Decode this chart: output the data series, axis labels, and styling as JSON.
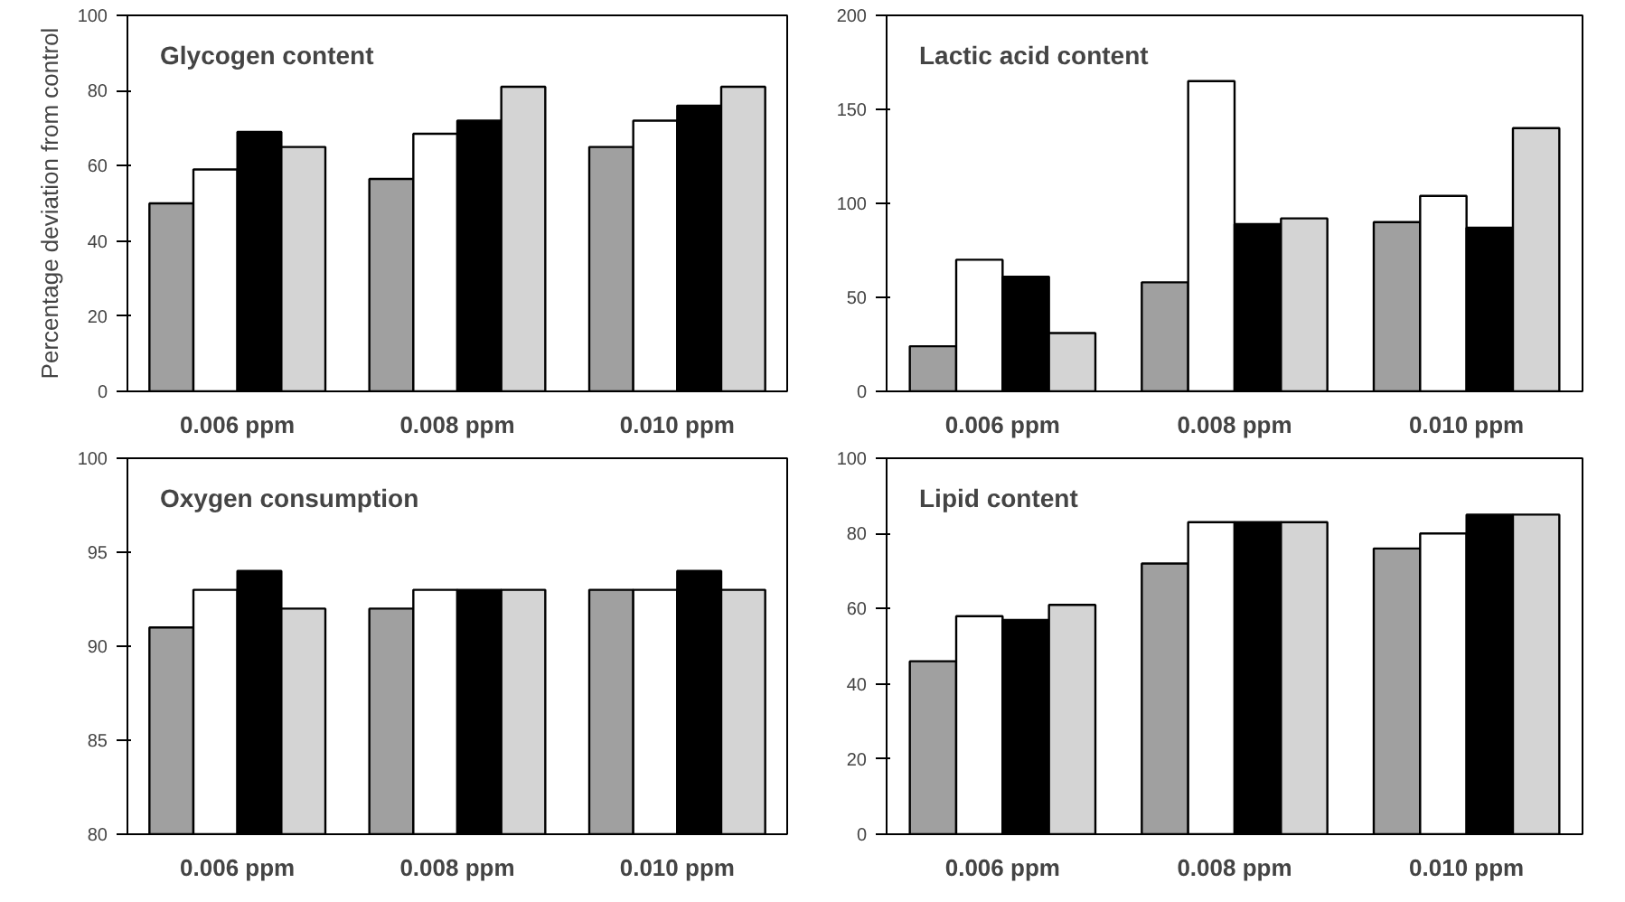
{
  "chart_data": [
    {
      "type": "bar",
      "title": "Glycogen content",
      "ylabel": "Percentage deviation from control",
      "categories": [
        "0.006 ppm",
        "0.008 ppm",
        "0.010 ppm"
      ],
      "ylim": [
        0,
        100
      ],
      "yticks": [
        0,
        20,
        40,
        60,
        80,
        100
      ],
      "grid": false,
      "series": [
        {
          "color": "#a0a0a0",
          "values": [
            50,
            56.5,
            65
          ]
        },
        {
          "color": "#ffffff",
          "values": [
            59,
            68.5,
            72
          ]
        },
        {
          "color": "#000000",
          "values": [
            69,
            72,
            76
          ]
        },
        {
          "color": "#d4d4d4",
          "values": [
            65,
            81,
            81
          ]
        }
      ]
    },
    {
      "type": "bar",
      "title": "Lactic acid content",
      "categories": [
        "0.006 ppm",
        "0.008 ppm",
        "0.010 ppm"
      ],
      "ylim": [
        0,
        200
      ],
      "yticks": [
        0,
        50,
        100,
        150,
        200
      ],
      "grid": false,
      "series": [
        {
          "color": "#a0a0a0",
          "values": [
            24,
            58,
            90
          ]
        },
        {
          "color": "#ffffff",
          "values": [
            70,
            165,
            104
          ]
        },
        {
          "color": "#000000",
          "values": [
            61,
            89,
            87
          ]
        },
        {
          "color": "#d4d4d4",
          "values": [
            31,
            92,
            140
          ]
        }
      ]
    },
    {
      "type": "bar",
      "title": "Oxygen consumption",
      "categories": [
        "0.006 ppm",
        "0.008 ppm",
        "0.010 ppm"
      ],
      "ylim": [
        80,
        100
      ],
      "yticks": [
        80,
        85,
        90,
        95,
        100
      ],
      "grid": false,
      "series": [
        {
          "color": "#a0a0a0",
          "values": [
            91,
            92,
            93
          ]
        },
        {
          "color": "#ffffff",
          "values": [
            93,
            93,
            93
          ]
        },
        {
          "color": "#000000",
          "values": [
            94,
            93,
            94
          ]
        },
        {
          "color": "#d4d4d4",
          "values": [
            92,
            93,
            93
          ]
        }
      ]
    },
    {
      "type": "bar",
      "title": "Lipid content",
      "categories": [
        "0.006 ppm",
        "0.008 ppm",
        "0.010 ppm"
      ],
      "ylim": [
        0,
        100
      ],
      "yticks": [
        0,
        20,
        40,
        60,
        80,
        100
      ],
      "grid": false,
      "series": [
        {
          "color": "#a0a0a0",
          "values": [
            46,
            72,
            76
          ]
        },
        {
          "color": "#ffffff",
          "values": [
            58,
            83,
            80
          ]
        },
        {
          "color": "#000000",
          "values": [
            57,
            83,
            85
          ]
        },
        {
          "color": "#d4d4d4",
          "values": [
            61,
            83,
            85
          ]
        }
      ]
    }
  ]
}
